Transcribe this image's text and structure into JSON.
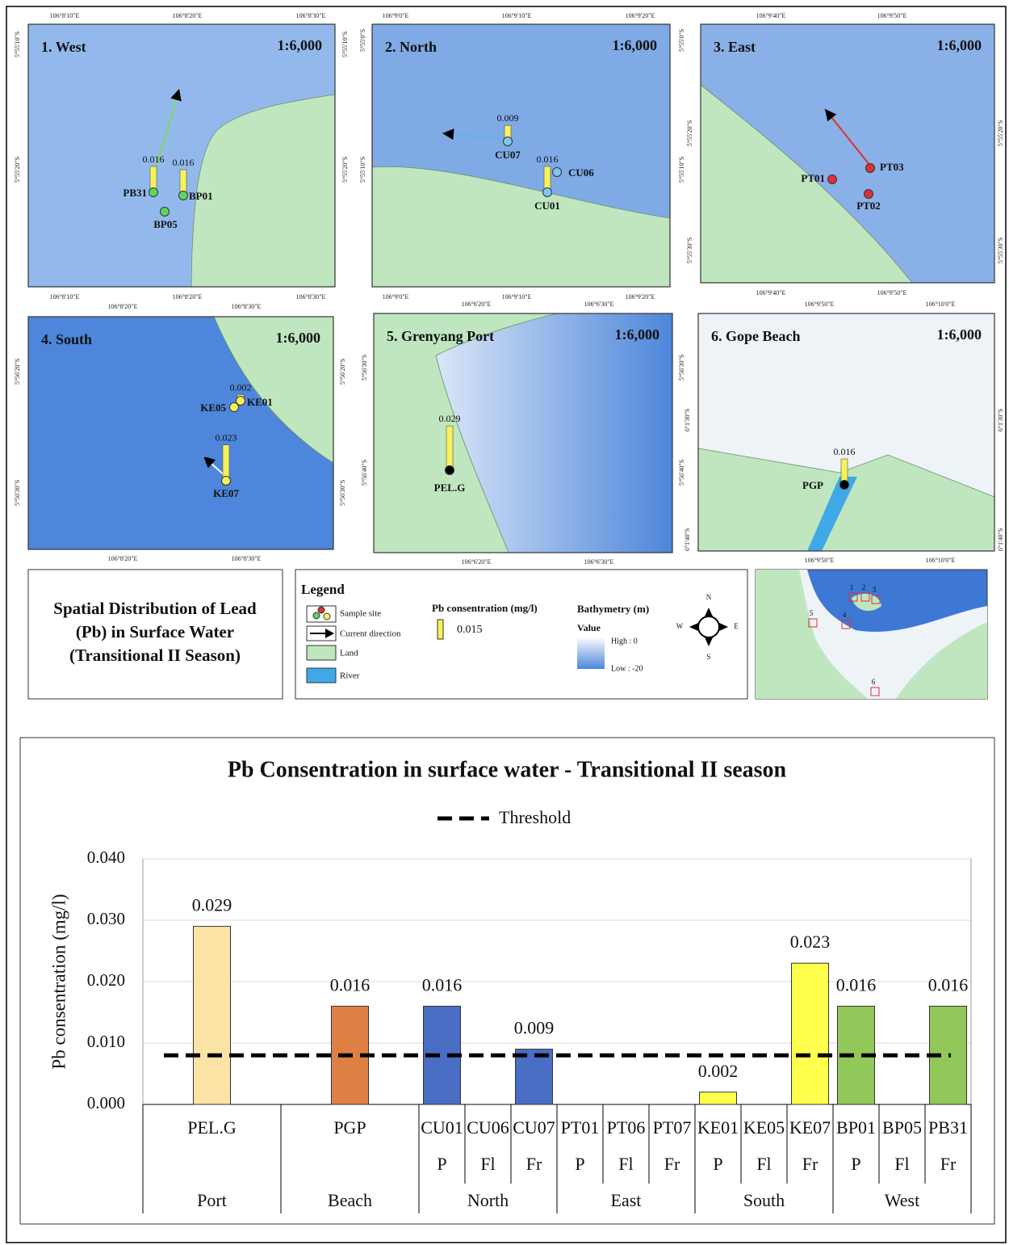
{
  "maps": {
    "panels": [
      {
        "title": "1. West",
        "scale": "1:6,000",
        "lon": [
          "106°8'10\"E",
          "106°8'20\"E",
          "106°8'30\"E"
        ],
        "lat": [
          "5°55'10\"S",
          "5°55'20\"S"
        ],
        "sites": [
          {
            "name": "PB31",
            "value": 0.016
          },
          {
            "name": "BP01",
            "value": 0.016
          },
          {
            "name": "BP05"
          }
        ]
      },
      {
        "title": "2. North",
        "scale": "1:6,000",
        "lon": [
          "106°9'0\"E",
          "106°9'10\"E",
          "106°9'20\"E"
        ],
        "lat": [
          "5°55'0\"S",
          "5°55'10\"S"
        ],
        "sites": [
          {
            "name": "CU07",
            "value": 0.009
          },
          {
            "name": "CU06"
          },
          {
            "name": "CU01",
            "value": 0.016
          }
        ]
      },
      {
        "title": "3. East",
        "scale": "1:6,000",
        "lon": [
          "106°9'40\"E",
          "106°9'50\"E"
        ],
        "lat": [
          "5°55'20\"S",
          "5°55'30\"S"
        ],
        "sites": [
          {
            "name": "PT01"
          },
          {
            "name": "PT03"
          },
          {
            "name": "PT02"
          }
        ]
      },
      {
        "title": "4. South",
        "scale": "1:6,000",
        "lon": [
          "106°8'20\"E",
          "106°8'30\"E"
        ],
        "lat": [
          "5°56'20\"S",
          "5°56'30\"S"
        ],
        "sites": [
          {
            "name": "KE05"
          },
          {
            "name": "KE01",
            "value": 0.002
          },
          {
            "name": "KE07",
            "value": 0.023
          }
        ]
      },
      {
        "title": "5. Grenyang Port",
        "scale": "1:6,000",
        "lon": [
          "106°6'20\"E",
          "106°6'30\"E"
        ],
        "lat": [
          "5°56'30\"S",
          "5°56'40\"S"
        ],
        "sites": [
          {
            "name": "PEL.G",
            "value": 0.029
          }
        ]
      },
      {
        "title": "6. Gope Beach",
        "scale": "1:6,000",
        "lon": [
          "106°9'50\"E",
          "106°10'0\"E"
        ],
        "lat": [
          "6°1'30\"S",
          "6°1'40\"S"
        ],
        "sites": [
          {
            "name": "PGP",
            "value": 0.016
          }
        ]
      }
    ],
    "summary": [
      "Spatial Distribution of Lead",
      "(Pb) in Surface Water",
      "(Transitional II Season)"
    ],
    "legend": {
      "title": "Legend",
      "items": [
        "Sample site",
        "Current direction",
        "Land",
        "River"
      ],
      "pb_title": "Pb consentration (mg/l)",
      "pb_value": "0.015",
      "bathy_title": "Bathymetry (m)",
      "bathy_sub": "Value",
      "bathy_high": "High : 0",
      "bathy_low": "Low : -20"
    },
    "compass": {
      "n": "N",
      "s": "S",
      "e": "E",
      "w": "W"
    },
    "inset_labels": [
      "1",
      "2",
      "3",
      "4",
      "5",
      "6"
    ]
  },
  "chart_data": {
    "type": "bar",
    "title": "Pb Consentration in surface water - Transitional II season",
    "y_label": "Pb consentration (mg/l)",
    "ylim": [
      0,
      0.04
    ],
    "yticks": [
      {
        "value": 0,
        "label": "0.000"
      },
      {
        "value": 0.01,
        "label": "0.010"
      },
      {
        "value": 0.02,
        "label": "0.020"
      },
      {
        "value": 0.03,
        "label": "0.030"
      },
      {
        "value": 0.04,
        "label": "0.040"
      }
    ],
    "grid": true,
    "threshold": {
      "name": "Threshold",
      "value": 0.008
    },
    "groups": [
      {
        "name": "Port",
        "color": "#fbe3a6",
        "categories": [
          "PEL.G"
        ],
        "values": [
          0.029
        ]
      },
      {
        "name": "Beach",
        "color": "#dd8043",
        "categories": [
          "PGP"
        ],
        "values": [
          0.016
        ]
      },
      {
        "name": "North",
        "color": "#4a6ec4",
        "categories": [
          "CU01",
          "CU06",
          "CU07"
        ],
        "sublabels": [
          "P",
          "Fl",
          "Fr"
        ],
        "values": [
          0.016,
          null,
          0.009
        ]
      },
      {
        "name": "East",
        "color": "#c9472f",
        "categories": [
          "PT01",
          "PT06",
          "PT07"
        ],
        "sublabels": [
          "P",
          "Fl",
          "Fr"
        ],
        "values": [
          null,
          null,
          null
        ]
      },
      {
        "name": "South",
        "color": "#ffff4d",
        "categories": [
          "KE01",
          "KE05",
          "KE07"
        ],
        "sublabels": [
          "P",
          "Fl",
          "Fr"
        ],
        "values": [
          0.002,
          null,
          0.023
        ]
      },
      {
        "name": "West",
        "color": "#92c75a",
        "categories": [
          "BP01",
          "BP05",
          "PB31"
        ],
        "sublabels": [
          "P",
          "Fl",
          "Fr"
        ],
        "values": [
          0.016,
          null,
          0.016
        ]
      }
    ]
  }
}
